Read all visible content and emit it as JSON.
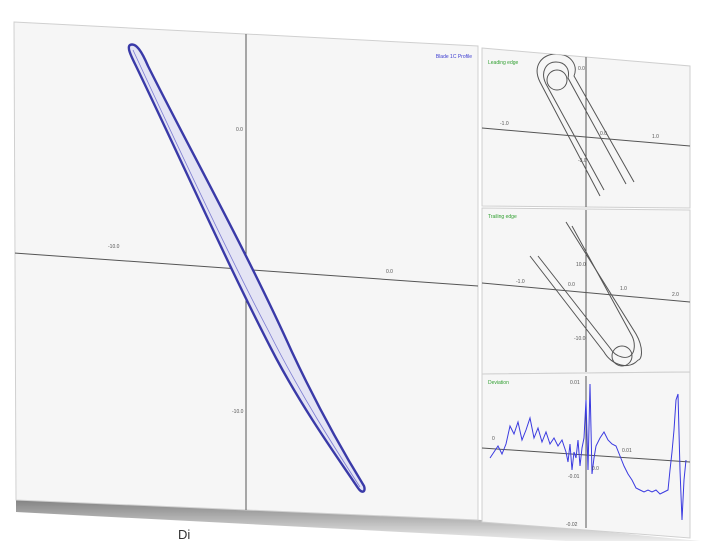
{
  "main_plot": {
    "title": "Blade 1C Profile",
    "x_ticks": [
      "-10.0",
      "0.0"
    ],
    "y_ticks": [
      "0.0",
      "-10.0"
    ]
  },
  "leading_edge": {
    "title": "Leading edge",
    "x_ticks": [
      "-1.0",
      "0.0",
      "1.0"
    ],
    "y_ticks": [
      "0.0",
      "-3.0"
    ]
  },
  "trailing_edge": {
    "title": "Trailing edge",
    "x_ticks": [
      "-1.0",
      "0.0",
      "1.0",
      "2.0"
    ],
    "y_ticks": [
      "10.0",
      "-10.0"
    ]
  },
  "deviation": {
    "title": "Deviation",
    "x_ticks": [
      "0",
      "0.0",
      "0.01"
    ],
    "y_ticks": [
      "0.01",
      "-0.01",
      "-0.02"
    ]
  },
  "caption": "Di",
  "colors": {
    "profile": "#3a3aa8",
    "panel_title": "#2f9f2f",
    "axes": "#555555",
    "deviation_line": "#3a3ae0"
  }
}
